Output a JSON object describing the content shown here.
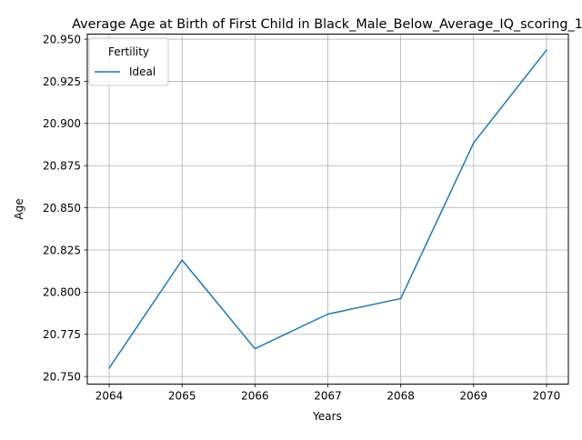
{
  "chart_data": {
    "type": "line",
    "title": "Average Age at Birth of First Child in Black_Male_Below_Average_IQ_scoring_1",
    "xlabel": "Years",
    "ylabel": "Age",
    "x": [
      2064,
      2065,
      2066,
      2067,
      2068,
      2069,
      2070
    ],
    "xlim": [
      2063.7,
      2070.3
    ],
    "ylim": [
      20.7455,
      20.953
    ],
    "y_ticks": [
      "20.750",
      "20.775",
      "20.800",
      "20.825",
      "20.850",
      "20.875",
      "20.900",
      "20.925",
      "20.950"
    ],
    "grid": true,
    "legend": {
      "title": "Fertility",
      "position": "top-left"
    },
    "series": [
      {
        "name": "Ideal",
        "color": "#1f77b4",
        "values": [
          20.755,
          20.819,
          20.7665,
          20.787,
          20.7962,
          20.8885,
          20.9435
        ]
      }
    ]
  }
}
